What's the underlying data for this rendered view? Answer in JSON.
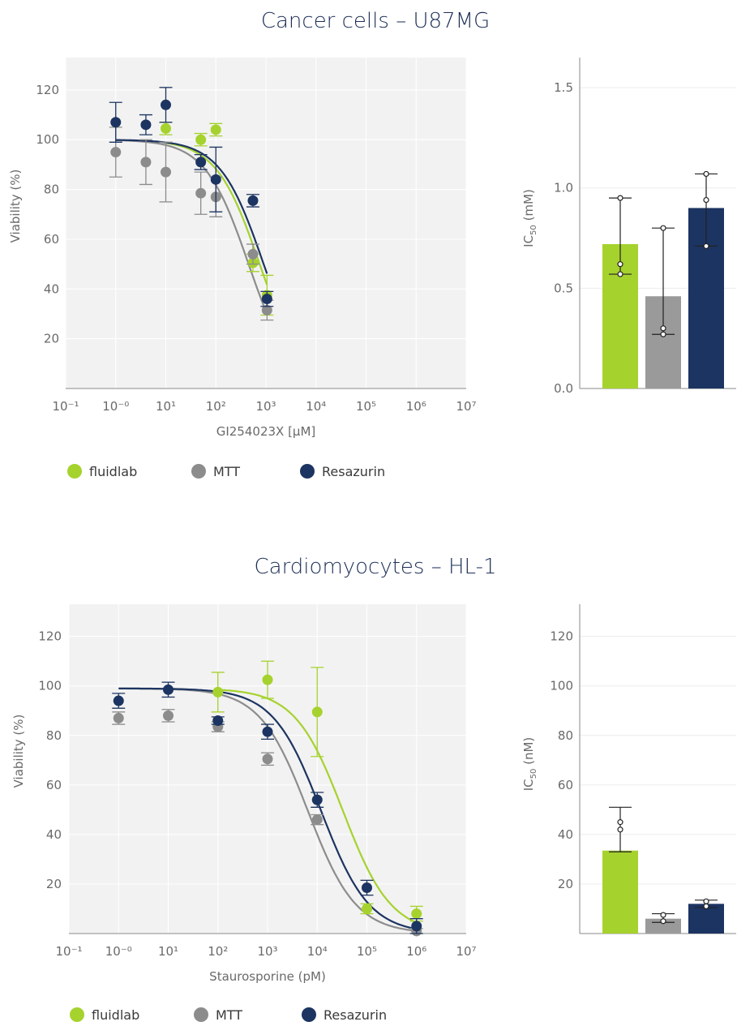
{
  "chart_data": [
    {
      "id": "u87_curve",
      "type": "scatter",
      "title": "Cancer cells – U87MG",
      "xlabel": "GI254023X [μM]",
      "ylabel": "Viability (%)",
      "xscale": "log",
      "xlim_exp": [
        -1,
        7
      ],
      "x_tick_labels": [
        "10⁻¹",
        "10⁻⁰",
        "10¹",
        "10²",
        "10³",
        "10⁴",
        "10⁵",
        "10⁶",
        "10⁷"
      ],
      "ylim": [
        0,
        133
      ],
      "y_ticks": [
        20,
        40,
        60,
        80,
        100,
        120
      ],
      "grid": true,
      "series": [
        {
          "name": "fluidlab",
          "color": "#a6d22e",
          "x": [
            10,
            50,
            100,
            550,
            1050
          ],
          "y": [
            104.5,
            100,
            104,
            50.5,
            37.5
          ],
          "err": [
            2.5,
            2.5,
            2.5,
            3.5,
            8
          ],
          "fit": {
            "top": 100,
            "bottom": 0,
            "ic50": 750,
            "hill": 1.0
          }
        },
        {
          "name": "MTT",
          "color": "#8c8c8c",
          "x": [
            1,
            4,
            10,
            50,
            100,
            550,
            1050
          ],
          "y": [
            95,
            91,
            87,
            78.5,
            77,
            54,
            31.5
          ],
          "err": [
            10,
            9,
            12,
            8.5,
            8,
            4,
            4
          ],
          "fit": {
            "top": 100,
            "bottom": 0,
            "ic50": 450,
            "hill": 1.0
          }
        },
        {
          "name": "Resazurin",
          "color": "#1c3461",
          "x": [
            1,
            4,
            10,
            50,
            100,
            550,
            1050
          ],
          "y": [
            107,
            106,
            114,
            91,
            84,
            75.5,
            36
          ],
          "err": [
            8,
            4,
            7,
            3,
            13,
            2.5,
            3
          ],
          "fit": {
            "top": 100,
            "bottom": 0,
            "ic50": 900,
            "hill": 1.0
          }
        }
      ]
    },
    {
      "id": "u87_bar",
      "type": "bar",
      "ylabel_main": "IC",
      "ylabel_sub": "50",
      "ylabel_unit": " (mM)",
      "ylim": [
        0,
        1.65
      ],
      "y_ticks": [
        0.0,
        0.5,
        1.0,
        1.5
      ],
      "y_tick_labels": [
        "0.0",
        "0.5",
        "1.0",
        "1.5"
      ],
      "categories": [
        "fluidlab",
        "MTT",
        "Resazurin"
      ],
      "values": [
        0.72,
        0.46,
        0.9
      ],
      "colors": [
        "#a6d22e",
        "#9a9a9a",
        "#1c3461"
      ],
      "err_low": [
        0.57,
        0.27,
        0.71
      ],
      "err_high": [
        0.95,
        0.8,
        1.07
      ],
      "points": [
        [
          0.95,
          0.62,
          0.57
        ],
        [
          0.8,
          0.3,
          0.27
        ],
        [
          1.07,
          0.94,
          0.71
        ]
      ]
    },
    {
      "id": "hl1_curve",
      "type": "scatter",
      "title": "Cardiomyocytes – HL-1",
      "xlabel": "Staurosporine (pM)",
      "ylabel": "Viability (%)",
      "xscale": "log",
      "xlim_exp": [
        -1,
        7
      ],
      "x_tick_labels": [
        "10⁻¹",
        "10⁻⁰",
        "10¹",
        "10²",
        "10³",
        "10⁴",
        "10⁵",
        "10⁶",
        "10⁷"
      ],
      "ylim": [
        0,
        133
      ],
      "y_ticks": [
        20,
        40,
        60,
        80,
        100,
        120
      ],
      "grid": true,
      "series": [
        {
          "name": "fluidlab",
          "color": "#a6d22e",
          "x": [
            100,
            1000,
            10000,
            100000,
            1000000
          ],
          "y": [
            97.5,
            102.5,
            89.5,
            10,
            8
          ],
          "err": [
            8,
            7.5,
            18,
            2,
            3
          ],
          "fit": {
            "top": 99,
            "bottom": 0,
            "ic50": 33000,
            "hill": 0.9
          }
        },
        {
          "name": "MTT",
          "color": "#8c8c8c",
          "x": [
            1,
            10,
            100,
            1000,
            10000,
            1000000
          ],
          "y": [
            87,
            88,
            83.5,
            70.5,
            46,
            1
          ],
          "err": [
            2.5,
            2.5,
            2,
            2.5,
            2,
            1
          ],
          "fit": {
            "top": 99,
            "bottom": 0,
            "ic50": 6500,
            "hill": 0.9
          }
        },
        {
          "name": "Resazurin",
          "color": "#1c3461",
          "x": [
            1,
            10,
            100,
            1000,
            10000,
            100000,
            1000000
          ],
          "y": [
            94,
            98.5,
            86,
            81.5,
            54,
            18.5,
            3
          ],
          "err": [
            3,
            3,
            1.5,
            3,
            3,
            3,
            3
          ],
          "fit": {
            "top": 99,
            "bottom": 0,
            "ic50": 12000,
            "hill": 0.9
          }
        }
      ]
    },
    {
      "id": "hl1_bar",
      "type": "bar",
      "ylabel_main": "IC",
      "ylabel_sub": "50",
      "ylabel_unit": " (nM)",
      "ylim": [
        0,
        133
      ],
      "y_ticks": [
        20,
        40,
        60,
        80,
        100,
        120
      ],
      "y_tick_labels": [
        "20",
        "40",
        "60",
        "80",
        "100",
        "120"
      ],
      "categories": [
        "fluidlab",
        "MTT",
        "Resazurin"
      ],
      "values": [
        33.5,
        6,
        12
      ],
      "colors": [
        "#a6d22e",
        "#9a9a9a",
        "#1c3461"
      ],
      "err_low": [
        33,
        4.5,
        10.5
      ],
      "err_high": [
        51,
        8,
        13.5
      ],
      "points": [
        [
          45,
          42
        ],
        [
          7.5,
          5
        ],
        [
          13,
          11
        ]
      ]
    }
  ],
  "legend": [
    {
      "label": "fluidlab",
      "color": "#a6d22e"
    },
    {
      "label": "MTT",
      "color": "#8c8c8c"
    },
    {
      "label": "Resazurin",
      "color": "#1c3461"
    }
  ]
}
